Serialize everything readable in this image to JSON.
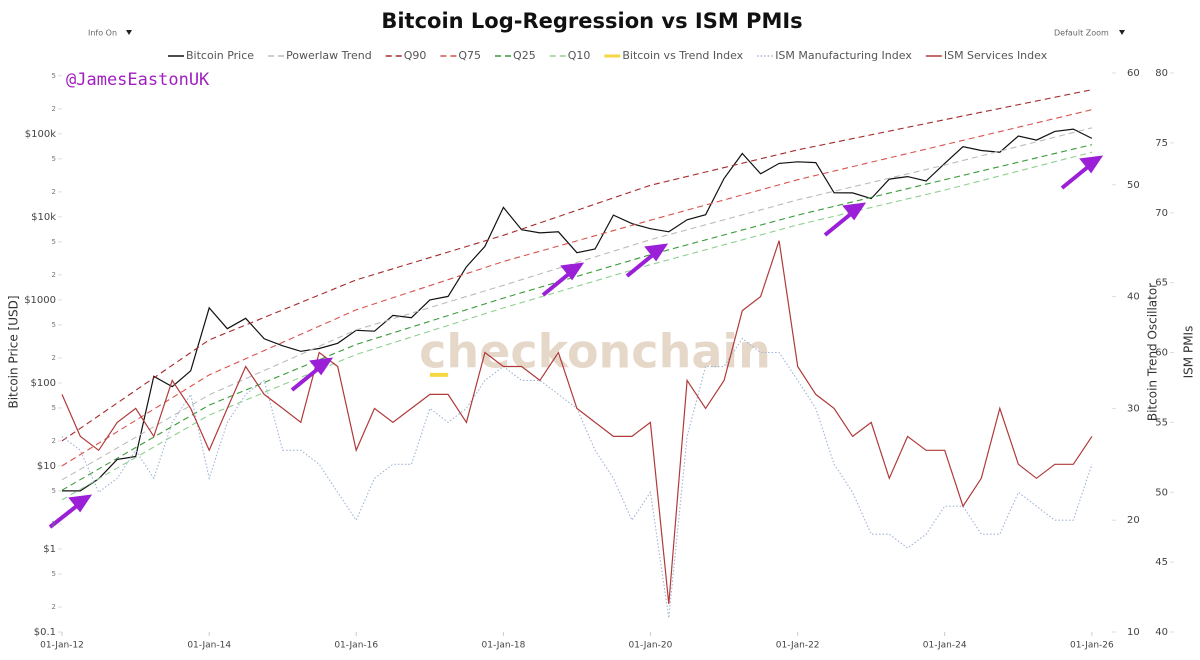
{
  "chart_data": {
    "type": "line",
    "title": "Bitcoin Log-Regression vs ISM PMIs",
    "menu_left": "Info On",
    "menu_right": "Default Zoom",
    "handle": "@JamesEastonUK",
    "watermark": "checkonchain",
    "ylabel": "Bitcoin Price [USD]",
    "y2label": "Bitcoin Trend Oscillator",
    "y3label": "ISM PMIs",
    "log_y": true,
    "xlim": [
      "2012-01-01",
      "2026-04-01"
    ],
    "xticks": [
      {
        "value": "2012-01-01",
        "label": "01-Jan-12"
      },
      {
        "value": "2014-01-01",
        "label": "01-Jan-14"
      },
      {
        "value": "2016-01-01",
        "label": "01-Jan-16"
      },
      {
        "value": "2018-01-01",
        "label": "01-Jan-18"
      },
      {
        "value": "2020-01-01",
        "label": "01-Jan-20"
      },
      {
        "value": "2022-01-01",
        "label": "01-Jan-22"
      },
      {
        "value": "2024-01-01",
        "label": "01-Jan-24"
      },
      {
        "value": "2026-01-01",
        "label": "01-Jan-26"
      }
    ],
    "ylim": [
      0.1,
      540000
    ],
    "yticks": [
      {
        "value": 0.1,
        "label": "$0.1"
      },
      {
        "value": 0.2,
        "label": "2"
      },
      {
        "value": 0.5,
        "label": "5"
      },
      {
        "value": 1,
        "label": "$1"
      },
      {
        "value": 2,
        "label": "2"
      },
      5,
      {
        "value": 10,
        "label": "$10"
      },
      {
        "value": 20,
        "label": "2"
      },
      {
        "value": 50,
        "label": "5"
      },
      {
        "value": 100,
        "label": "$100"
      },
      {
        "value": 200,
        "label": "2"
      },
      {
        "value": 500,
        "label": "5"
      },
      {
        "value": 1000,
        "label": "$1000"
      },
      {
        "value": 2000,
        "label": "2"
      },
      {
        "value": 5000,
        "label": "5"
      },
      {
        "value": 10000,
        "label": "$10k"
      },
      {
        "value": 20000,
        "label": "2"
      },
      {
        "value": 50000,
        "label": "5"
      },
      {
        "value": 100000,
        "label": "$100k"
      },
      {
        "value": 200000,
        "label": "2"
      },
      {
        "value": 500000,
        "label": "5"
      }
    ],
    "y2lim": [
      10,
      60
    ],
    "y2ticks": [
      10,
      20,
      30,
      40,
      50,
      60
    ],
    "y3lim": [
      40,
      80
    ],
    "y3ticks": [
      40,
      45,
      50,
      55,
      60,
      65,
      70,
      75,
      80
    ],
    "x": [
      "2012-01-01",
      "2012-04-01",
      "2012-07-01",
      "2012-10-01",
      "2013-01-01",
      "2013-04-01",
      "2013-07-01",
      "2013-10-01",
      "2014-01-01",
      "2014-04-01",
      "2014-07-01",
      "2014-10-01",
      "2015-01-01",
      "2015-04-01",
      "2015-07-01",
      "2015-10-01",
      "2016-01-01",
      "2016-04-01",
      "2016-07-01",
      "2016-10-01",
      "2017-01-01",
      "2017-04-01",
      "2017-07-01",
      "2017-10-01",
      "2018-01-01",
      "2018-04-01",
      "2018-07-01",
      "2018-10-01",
      "2019-01-01",
      "2019-04-01",
      "2019-07-01",
      "2019-10-01",
      "2020-01-01",
      "2020-04-01",
      "2020-07-01",
      "2020-10-01",
      "2021-01-01",
      "2021-04-01",
      "2021-07-01",
      "2021-10-01",
      "2022-01-01",
      "2022-04-01",
      "2022-07-01",
      "2022-10-01",
      "2023-01-01",
      "2023-04-01",
      "2023-07-01",
      "2023-10-01",
      "2024-01-01",
      "2024-04-01",
      "2024-07-01",
      "2024-10-01",
      "2025-01-01",
      "2025-04-01",
      "2025-07-01",
      "2025-10-01",
      "2026-01-01"
    ],
    "series": [
      {
        "name": "Bitcoin Price",
        "color": "#111111",
        "style": "solid",
        "values": [
          5,
          5,
          7,
          12,
          13,
          120,
          90,
          140,
          800,
          450,
          600,
          340,
          280,
          240,
          260,
          300,
          430,
          420,
          650,
          610,
          1000,
          1100,
          2500,
          4400,
          13000,
          7000,
          6400,
          6600,
          3700,
          4100,
          10500,
          8300,
          7200,
          6600,
          9200,
          10600,
          29000,
          58000,
          33000,
          44000,
          46000,
          45000,
          19500,
          19400,
          16600,
          28500,
          30500,
          27000,
          44000,
          70000,
          63000,
          60000,
          94000,
          84000,
          107000,
          114000,
          88000
        ]
      },
      {
        "name": "Powerlaw Trend",
        "color": "#bbbbbb",
        "style": "dashed",
        "x": [
          "2012-01-01",
          "2014-01-01",
          "2016-01-01",
          "2018-01-01",
          "2020-01-01",
          "2022-01-01",
          "2024-01-01",
          "2026-01-01"
        ],
        "values": [
          6.8,
          72,
          435,
          1500,
          5300,
          16000,
          42000,
          118000
        ]
      },
      {
        "name": "Q90",
        "color": "#a52a2a",
        "style": "dashed",
        "x": [
          "2012-01-01",
          "2014-01-01",
          "2016-01-01",
          "2018-01-01",
          "2020-01-01",
          "2022-01-01",
          "2024-01-01",
          "2026-01-01"
        ],
        "values": [
          20,
          330,
          1740,
          6000,
          24000,
          64000,
          148000,
          340000
        ]
      },
      {
        "name": "Q75",
        "color": "#d9534f",
        "style": "dashed",
        "x": [
          "2012-01-01",
          "2014-01-01",
          "2016-01-01",
          "2018-01-01",
          "2020-01-01",
          "2022-01-01",
          "2024-01-01",
          "2026-01-01"
        ],
        "values": [
          10,
          125,
          760,
          2900,
          9100,
          28000,
          74000,
          195000
        ]
      },
      {
        "name": "Q25",
        "color": "#3a9a3a",
        "style": "dashed",
        "x": [
          "2012-01-01",
          "2014-01-01",
          "2016-01-01",
          "2018-01-01",
          "2020-01-01",
          "2022-01-01",
          "2024-01-01",
          "2026-01-01"
        ],
        "values": [
          5.1,
          54,
          290,
          1050,
          3500,
          10500,
          28000,
          74000
        ]
      },
      {
        "name": "Q10",
        "color": "#8fd08f",
        "style": "dashed",
        "x": [
          "2012-01-01",
          "2014-01-01",
          "2016-01-01",
          "2018-01-01",
          "2020-01-01",
          "2022-01-01",
          "2024-01-01",
          "2026-01-01"
        ],
        "values": [
          3.9,
          41,
          220,
          800,
          2650,
          8000,
          21000,
          60000
        ]
      },
      {
        "name": "Bitcoin vs Trend Index",
        "color": "#f5d742",
        "style": "solid",
        "axis": "y2",
        "x": [
          "2017-01-01",
          "2017-04-01"
        ],
        "values": [
          33,
          33
        ]
      },
      {
        "name": "ISM Manufacturing Index",
        "color": "#9fb4d6",
        "style": "dotted",
        "axis": "y3",
        "values": [
          54,
          53,
          50,
          51,
          53,
          51,
          55,
          57,
          51,
          55,
          57,
          58,
          53,
          53,
          52,
          50,
          48,
          51,
          52,
          52,
          56,
          55,
          56,
          58,
          59,
          58,
          58,
          57,
          56,
          53,
          51,
          48,
          50,
          41,
          54,
          59,
          59,
          61,
          60,
          60,
          58,
          56,
          52,
          50,
          47,
          47,
          46,
          47,
          49,
          49,
          47,
          47,
          50,
          49,
          48,
          48,
          52
        ]
      },
      {
        "name": "ISM Services Index",
        "color": "#b03a3a",
        "style": "solid",
        "axis": "y3",
        "values": [
          57,
          54,
          53,
          55,
          56,
          54,
          58,
          56,
          53,
          56,
          59,
          57,
          56,
          55,
          60,
          59,
          53,
          56,
          55,
          56,
          57,
          57,
          55,
          60,
          59,
          59,
          58,
          60,
          56,
          55,
          54,
          54,
          55,
          42,
          58,
          56,
          58,
          63,
          64,
          68,
          59,
          57,
          56,
          54,
          55,
          51,
          54,
          53,
          53,
          49,
          51,
          56,
          52,
          51,
          52,
          52,
          54
        ]
      }
    ]
  }
}
